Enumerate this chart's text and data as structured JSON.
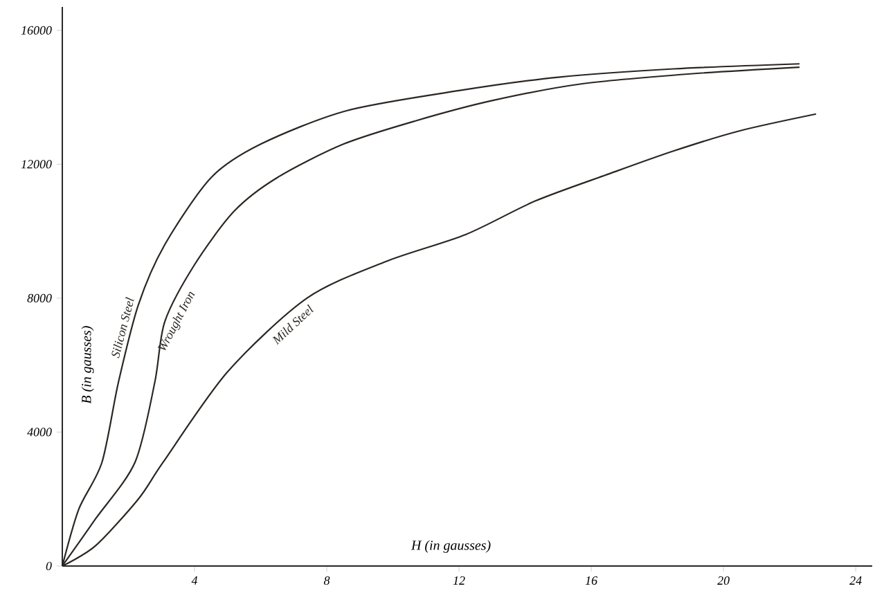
{
  "chart_data": {
    "type": "line",
    "xlabel": "H  (in gausses)",
    "ylabel": "B  (in gausses)",
    "xlim": [
      0,
      24.5
    ],
    "ylim": [
      0,
      16700
    ],
    "xticks": [
      4,
      8,
      12,
      16,
      20,
      24
    ],
    "yticks": [
      0,
      4000,
      8000,
      12000,
      16000
    ],
    "marker": "none",
    "line_style": "solid",
    "series": [
      {
        "name": "Silicon Steel",
        "color": "#2b2622",
        "x": [
          0,
          0.5,
          1.2,
          1.7,
          2.3,
          3.1,
          4.5,
          6,
          8.6,
          12,
          15,
          18.5,
          22.3
        ],
        "values": [
          0,
          1700,
          3100,
          5500,
          7800,
          9600,
          11600,
          12600,
          13600,
          14200,
          14600,
          14850,
          15000
        ]
      },
      {
        "name": "Wrought Iron",
        "color": "#2b2622",
        "x": [
          0,
          1,
          2.2,
          2.8,
          3.1,
          4,
          5.2,
          6.5,
          8.5,
          10.7,
          13,
          15.7,
          19,
          22.3
        ],
        "values": [
          0,
          1400,
          3100,
          5500,
          7300,
          9000,
          10600,
          11600,
          12600,
          13300,
          13900,
          14400,
          14700,
          14900
        ]
      },
      {
        "name": "Mild Steel",
        "color": "#2b2622",
        "x": [
          0,
          1,
          2.3,
          3.05,
          5,
          7.4,
          9.8,
          12.2,
          14.3,
          16.5,
          18.5,
          20.5,
          22.8
        ],
        "values": [
          0,
          600,
          2000,
          3100,
          5800,
          8000,
          9100,
          9900,
          10900,
          11700,
          12400,
          13000,
          13500
        ]
      }
    ]
  }
}
